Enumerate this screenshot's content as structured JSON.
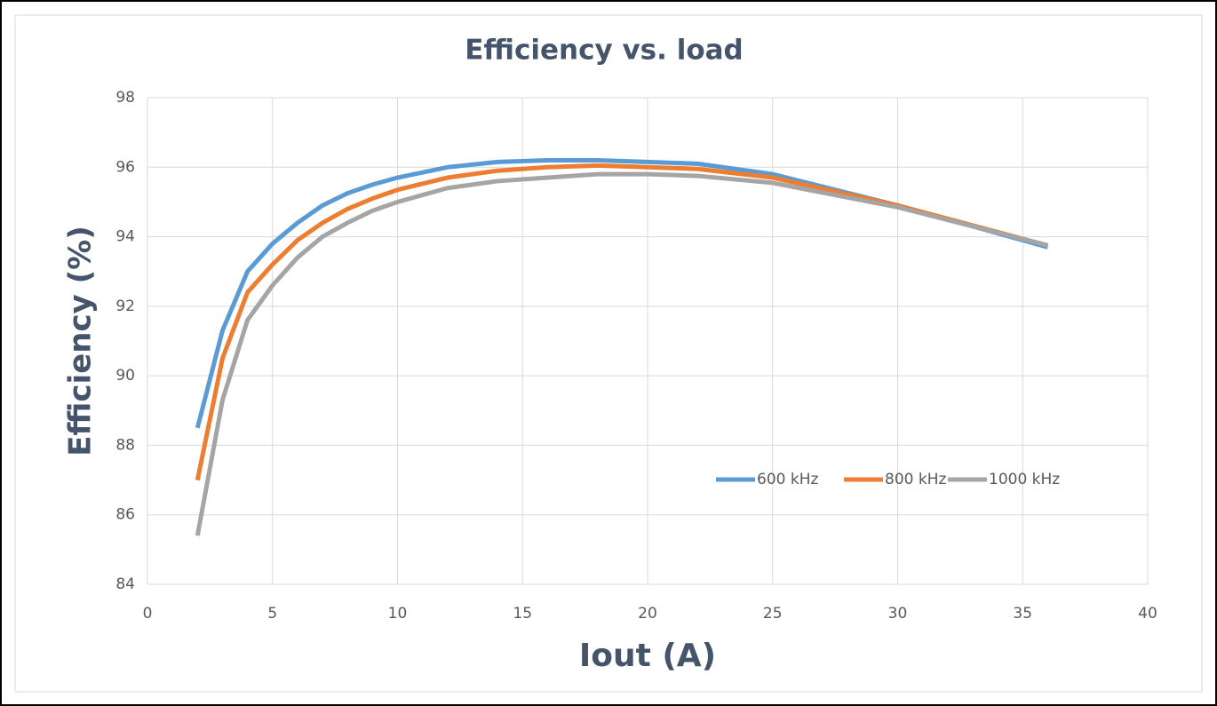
{
  "chart_data": {
    "type": "line",
    "title": "Efficiency vs. load",
    "x_label": "Iout (A)",
    "y_label": "Efficiency (%)",
    "x": [
      2,
      3,
      4,
      5,
      6,
      7,
      8,
      9,
      10,
      12,
      14,
      16,
      18,
      20,
      22,
      25,
      30,
      36
    ],
    "series": [
      {
        "name": "600 kHz",
        "color": "#5b9bd5",
        "values": [
          88.5,
          91.3,
          93.0,
          93.8,
          94.4,
          94.9,
          95.25,
          95.5,
          95.7,
          96.0,
          96.15,
          96.2,
          96.2,
          96.15,
          96.1,
          95.8,
          94.9,
          93.7
        ]
      },
      {
        "name": "800 kHz",
        "color": "#ed7d31",
        "values": [
          87.0,
          90.5,
          92.4,
          93.2,
          93.9,
          94.4,
          94.8,
          95.1,
          95.35,
          95.7,
          95.9,
          96.0,
          96.05,
          96.0,
          95.95,
          95.7,
          94.9,
          93.75
        ]
      },
      {
        "name": "1000 kHz",
        "color": "#a5a5a5",
        "values": [
          85.4,
          89.3,
          91.6,
          92.6,
          93.4,
          94.0,
          94.4,
          94.75,
          95.0,
          95.4,
          95.6,
          95.7,
          95.8,
          95.8,
          95.75,
          95.55,
          94.85,
          93.75
        ]
      }
    ],
    "xlim": [
      0,
      40
    ],
    "xticks": [
      0,
      5,
      10,
      15,
      20,
      25,
      30,
      35,
      40
    ],
    "ylim": [
      84,
      98
    ],
    "yticks": [
      84,
      86,
      88,
      90,
      92,
      94,
      96,
      98
    ],
    "grid": true,
    "legend": "inside-right"
  }
}
